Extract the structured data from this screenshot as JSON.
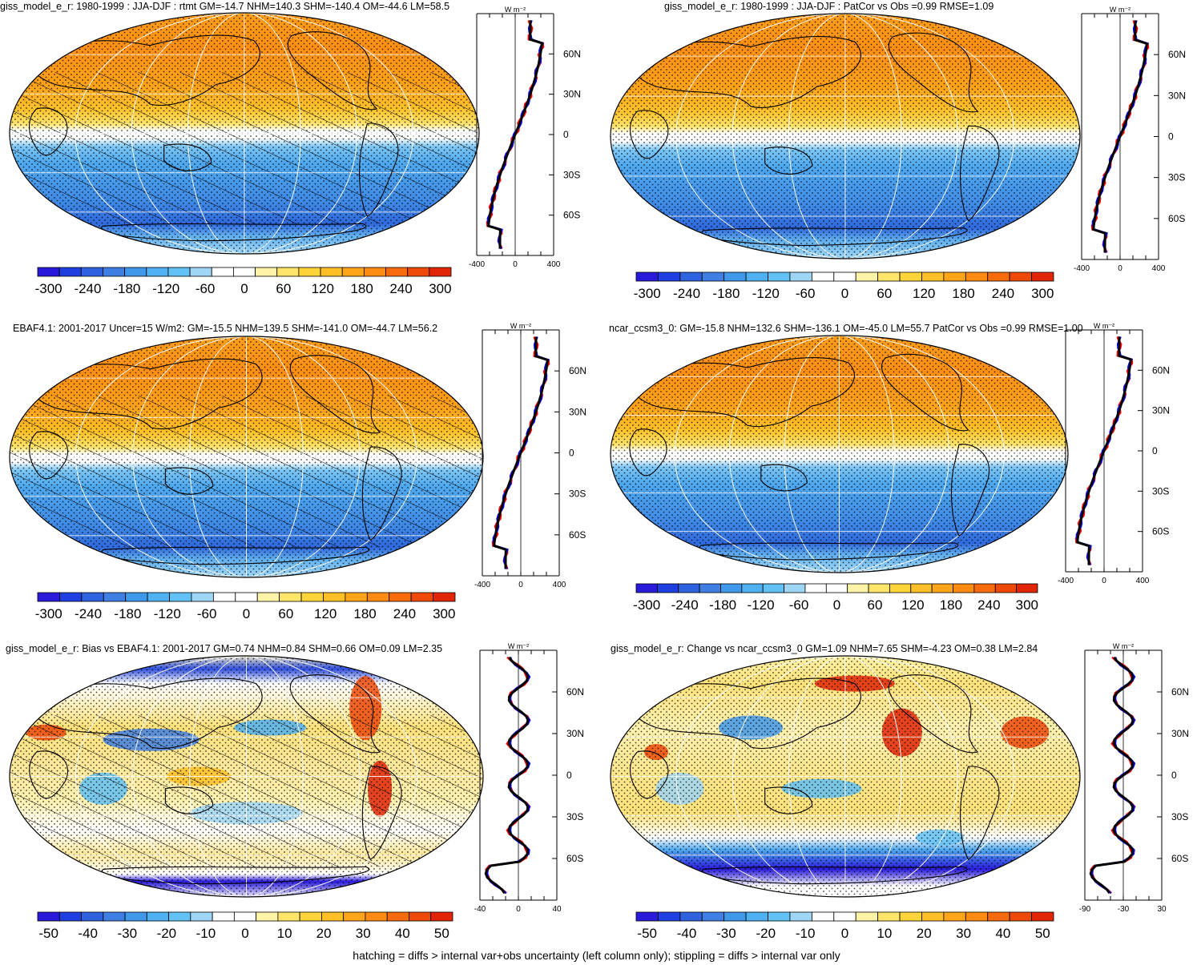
{
  "colors": {
    "palette": [
      "#2a1bdb",
      "#1f3fe0",
      "#2f62de",
      "#3f7fe4",
      "#3f98ea",
      "#4fb0f2",
      "#62c1f5",
      "#9fd6f5",
      "#ffffff",
      "#ffffff",
      "#fff3a8",
      "#ffe56a",
      "#ffd43a",
      "#ffbf26",
      "#ffa51a",
      "#ff8b12",
      "#f86b0c",
      "#ee4908",
      "#e12506"
    ],
    "obs_line": "#ff0000",
    "model_line": "#0000ff",
    "ref_line": "#000000"
  },
  "panels": [
    {
      "id": "p1",
      "title": "giss_model_e_r: 1980-1999 : JJA-DJF : rtmt GM=-14.7 NHM=140.3 SHM=-140.4 OM=-44.6 LM=58.5",
      "units": "W m⁻²",
      "type": "abs",
      "hatching": true,
      "lat_labels": [
        "60N",
        "30N",
        "0",
        "30S",
        "60S"
      ],
      "x_ticks": [
        "-400",
        "0",
        "400"
      ],
      "colorbar_labels": [
        "-300",
        "-240",
        "-180",
        "-120",
        "-60",
        "0",
        "60",
        "120",
        "180",
        "240",
        "300"
      ]
    },
    {
      "id": "p2",
      "title": "giss_model_e_r: 1980-1999 : JJA-DJF : PatCor vs Obs =0.99 RMSE=1.09",
      "units": "W m⁻²",
      "type": "abs",
      "hatching": false,
      "lat_labels": [
        "60N",
        "30N",
        "0",
        "30S",
        "60S"
      ],
      "x_ticks": [
        "-400",
        "0",
        "400"
      ],
      "colorbar_labels": [
        "-300",
        "-240",
        "-180",
        "-120",
        "-60",
        "0",
        "60",
        "120",
        "180",
        "240",
        "300"
      ]
    },
    {
      "id": "p3",
      "title": "EBAF4.1: 2001-2017 Uncer=15 W/m2: GM=-15.5 NHM=139.5 SHM=-141.0 OM=-44.7 LM=56.2",
      "units": "W m⁻²",
      "type": "abs",
      "hatching": true,
      "lat_labels": [
        "60N",
        "30N",
        "0",
        "30S",
        "60S"
      ],
      "x_ticks": [
        "-400",
        "0",
        "400"
      ],
      "colorbar_labels": [
        "-300",
        "-240",
        "-180",
        "-120",
        "-60",
        "0",
        "60",
        "120",
        "180",
        "240",
        "300"
      ]
    },
    {
      "id": "p4",
      "title": "ncar_ccsm3_0: GM=-15.8 NHM=132.6 SHM=-136.1 OM=-45.0 LM=55.7 PatCor vs Obs =0.99 RMSE=1.00",
      "units": "W m⁻²",
      "type": "abs",
      "hatching": false,
      "lat_labels": [
        "60N",
        "30N",
        "0",
        "30S",
        "60S"
      ],
      "x_ticks": [
        "-400",
        "0",
        "400"
      ],
      "colorbar_labels": [
        "-300",
        "-240",
        "-180",
        "-120",
        "-60",
        "0",
        "60",
        "120",
        "180",
        "240",
        "300"
      ]
    },
    {
      "id": "p5",
      "title": "giss_model_e_r: Bias vs EBAF4.1: 2001-2017 GM=0.74 NHM=0.84 SHM=0.66 OM=0.09 LM=2.35",
      "units": "W m⁻²",
      "type": "diff",
      "hatching": true,
      "lat_labels": [
        "60N",
        "30N",
        "0",
        "30S",
        "60S"
      ],
      "x_ticks": [
        "-40",
        "0",
        "40"
      ],
      "colorbar_labels": [
        "-50",
        "-40",
        "-30",
        "-20",
        "-10",
        "0",
        "10",
        "20",
        "30",
        "40",
        "50"
      ]
    },
    {
      "id": "p6",
      "title": "giss_model_e_r: Change vs ncar_ccsm3_0 GM=1.09 NHM=7.65 SHM=-4.23 OM=0.38 LM=2.84",
      "units": "W m⁻²",
      "type": "diff",
      "hatching": false,
      "lat_labels": [
        "60N",
        "30N",
        "0",
        "30S",
        "60S"
      ],
      "x_ticks": [
        "-90",
        "-30",
        "30"
      ],
      "colorbar_labels": [
        "-50",
        "-40",
        "-30",
        "-20",
        "-10",
        "0",
        "10",
        "20",
        "30",
        "40",
        "50"
      ]
    }
  ],
  "footer": "hatching = diffs > internal var+obs uncertainty (left column only); stippling = diffs > internal var only"
}
